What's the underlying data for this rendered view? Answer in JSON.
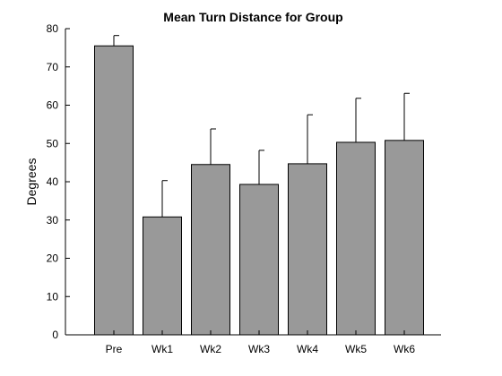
{
  "chart_data": {
    "type": "bar",
    "title": "Mean Turn Distance for Group",
    "xlabel": "",
    "ylabel": "Degrees",
    "categories": [
      "Pre",
      "Wk1",
      "Wk2",
      "Wk3",
      "Wk4",
      "Wk5",
      "Wk6"
    ],
    "values": [
      75.5,
      30.8,
      44.5,
      39.3,
      44.7,
      50.3,
      50.8
    ],
    "error_upper": [
      78.2,
      40.3,
      53.8,
      48.2,
      57.5,
      61.8,
      63.1
    ],
    "ylim": [
      0,
      80
    ],
    "yticks": [
      0,
      10,
      20,
      30,
      40,
      50,
      60,
      70,
      80
    ],
    "grid": false,
    "bar_color": "#999999"
  }
}
